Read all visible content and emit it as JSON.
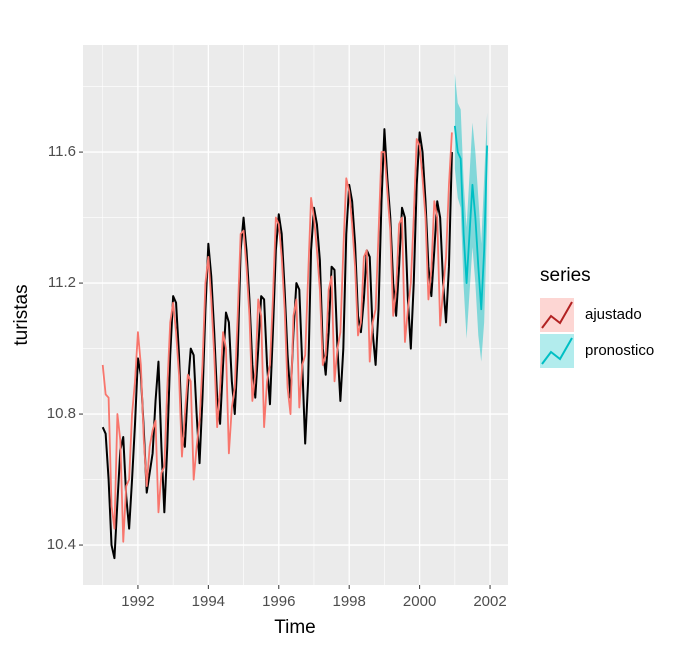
{
  "chart_data": {
    "type": "line",
    "xlabel": "Time",
    "ylabel": "turistas",
    "legend_title": "series",
    "xlim": [
      1990.44,
      2002.51
    ],
    "ylim": [
      10.278,
      11.927
    ],
    "xticks": [
      1992,
      1994,
      1996,
      1998,
      2000,
      2002
    ],
    "yticks": [
      10.4,
      10.8,
      11.2,
      11.6
    ],
    "grid": true,
    "legend_position": "right",
    "x": [
      1991,
      1991.083,
      1991.167,
      1991.25,
      1991.333,
      1991.417,
      1991.5,
      1991.583,
      1991.667,
      1991.75,
      1991.833,
      1991.917,
      1992,
      1992.083,
      1992.167,
      1992.25,
      1992.333,
      1992.417,
      1992.5,
      1992.583,
      1992.667,
      1992.75,
      1992.833,
      1992.917,
      1993,
      1993.083,
      1993.167,
      1993.25,
      1993.333,
      1993.417,
      1993.5,
      1993.583,
      1993.667,
      1993.75,
      1993.833,
      1993.917,
      1994,
      1994.083,
      1994.167,
      1994.25,
      1994.333,
      1994.417,
      1994.5,
      1994.583,
      1994.667,
      1994.75,
      1994.833,
      1994.917,
      1995,
      1995.083,
      1995.167,
      1995.25,
      1995.333,
      1995.417,
      1995.5,
      1995.583,
      1995.667,
      1995.75,
      1995.833,
      1995.917,
      1996,
      1996.083,
      1996.167,
      1996.25,
      1996.333,
      1996.417,
      1996.5,
      1996.583,
      1996.667,
      1996.75,
      1996.833,
      1996.917,
      1997,
      1997.083,
      1997.167,
      1997.25,
      1997.333,
      1997.417,
      1997.5,
      1997.583,
      1997.667,
      1997.75,
      1997.833,
      1997.917,
      1998,
      1998.083,
      1998.167,
      1998.25,
      1998.333,
      1998.417,
      1998.5,
      1998.583,
      1998.667,
      1998.75,
      1998.833,
      1998.917,
      1999,
      1999.083,
      1999.167,
      1999.25,
      1999.333,
      1999.417,
      1999.5,
      1999.583,
      1999.667,
      1999.75,
      1999.833,
      1999.917,
      2000,
      2000.083,
      2000.167,
      2000.25,
      2000.333,
      2000.417,
      2000.5,
      2000.583,
      2000.667,
      2000.75,
      2000.833,
      2000.917
    ],
    "observed": {
      "color": "#000000",
      "values": [
        10.76,
        10.74,
        10.6,
        10.4,
        10.36,
        10.53,
        10.69,
        10.73,
        10.55,
        10.45,
        10.6,
        10.77,
        10.97,
        10.92,
        10.75,
        10.56,
        10.62,
        10.68,
        10.84,
        10.96,
        10.7,
        10.5,
        10.7,
        10.98,
        11.16,
        11.14,
        10.98,
        10.75,
        10.7,
        10.88,
        11.0,
        10.98,
        10.8,
        10.65,
        10.85,
        11.12,
        11.32,
        11.22,
        11.05,
        10.85,
        10.77,
        10.95,
        11.11,
        11.08,
        10.9,
        10.8,
        10.98,
        11.3,
        11.4,
        11.3,
        11.15,
        10.95,
        10.85,
        11.0,
        11.16,
        11.15,
        10.95,
        10.83,
        11.05,
        11.3,
        11.41,
        11.35,
        11.18,
        10.98,
        10.85,
        11.05,
        11.2,
        11.18,
        10.95,
        10.71,
        10.9,
        11.3,
        11.43,
        11.38,
        11.27,
        11.0,
        10.92,
        11.05,
        11.25,
        11.24,
        11.0,
        10.84,
        11.0,
        11.35,
        11.5,
        11.45,
        11.32,
        11.1,
        11.05,
        11.15,
        11.3,
        11.28,
        11.05,
        10.95,
        11.12,
        11.45,
        11.67,
        11.52,
        11.4,
        11.2,
        11.1,
        11.25,
        11.43,
        11.4,
        11.15,
        11.0,
        11.2,
        11.5,
        11.66,
        11.6,
        11.45,
        11.25,
        11.16,
        11.3,
        11.45,
        11.4,
        11.2,
        11.08,
        11.25,
        11.6
      ]
    },
    "series": [
      {
        "name": "ajustado",
        "color": "#F8766D",
        "line_key_color": "#B22222",
        "values": [
          10.95,
          10.86,
          10.85,
          10.52,
          10.45,
          10.8,
          10.72,
          10.41,
          10.58,
          10.6,
          10.8,
          10.9,
          11.05,
          10.95,
          10.72,
          10.58,
          10.7,
          10.75,
          10.78,
          10.5,
          10.62,
          10.64,
          10.88,
          11.08,
          11.14,
          11.05,
          10.92,
          10.67,
          10.8,
          10.92,
          10.9,
          10.6,
          10.7,
          10.78,
          10.95,
          11.2,
          11.28,
          11.15,
          10.98,
          10.76,
          10.88,
          11.05,
          11.0,
          10.68,
          10.82,
          10.88,
          11.1,
          11.35,
          11.36,
          11.25,
          11.1,
          10.84,
          10.92,
          11.15,
          11.1,
          10.76,
          10.9,
          10.95,
          11.15,
          11.4,
          11.38,
          11.28,
          11.12,
          10.88,
          10.8,
          11.1,
          11.15,
          10.82,
          10.95,
          10.98,
          11.22,
          11.46,
          11.4,
          11.3,
          11.18,
          10.95,
          10.98,
          11.18,
          11.22,
          10.9,
          11.0,
          11.05,
          11.3,
          11.52,
          11.48,
          11.38,
          11.25,
          11.04,
          11.08,
          11.28,
          11.3,
          10.96,
          11.08,
          11.12,
          11.35,
          11.6,
          11.6,
          11.48,
          11.36,
          11.1,
          11.18,
          11.38,
          11.4,
          11.02,
          11.12,
          11.2,
          11.4,
          11.64,
          11.62,
          11.52,
          11.4,
          11.15,
          11.24,
          11.45,
          11.4,
          11.07,
          11.18,
          11.28,
          11.5,
          11.66
        ]
      },
      {
        "name": "pronostico",
        "color": "#00BFC4",
        "x": [
          2001,
          2001.083,
          2001.167,
          2001.25,
          2001.333,
          2001.417,
          2001.5,
          2001.583,
          2001.667,
          2001.75,
          2001.833,
          2001.917
        ],
        "values": [
          11.68,
          11.6,
          11.58,
          11.35,
          11.2,
          11.35,
          11.5,
          11.4,
          11.25,
          11.12,
          11.3,
          11.62
        ],
        "lower": [
          11.55,
          11.46,
          11.43,
          11.19,
          11.03,
          11.17,
          11.31,
          11.2,
          11.04,
          10.96,
          11.08,
          11.39
        ],
        "upper": [
          11.84,
          11.75,
          11.73,
          11.51,
          11.37,
          11.53,
          11.69,
          11.6,
          11.46,
          11.32,
          11.52,
          11.72
        ]
      }
    ]
  }
}
